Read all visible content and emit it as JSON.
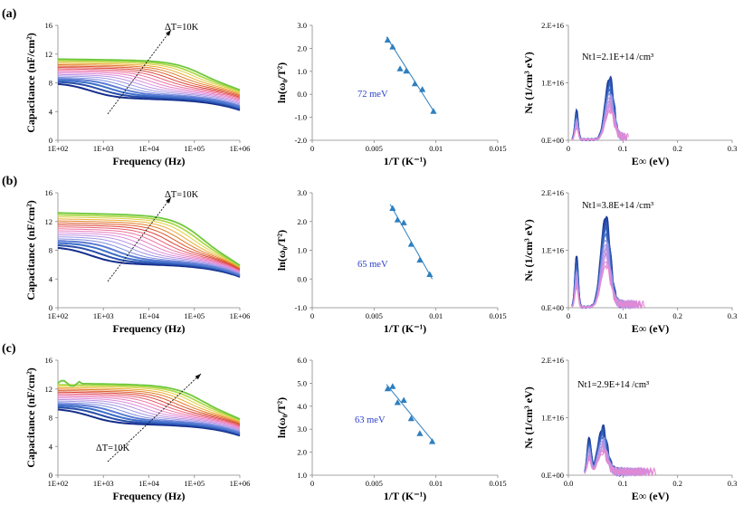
{
  "rows": [
    {
      "label": "(a)",
      "cap": {
        "annotation": "ΔT=10K",
        "ylabel": "Capacitance (nF/cm²)",
        "xlabel": "Frequency (Hz)",
        "yticks": [
          "0",
          "4",
          "8",
          "12",
          "16"
        ],
        "ylim": [
          0,
          16
        ],
        "xticks": [
          "1E+02",
          "1E+03",
          "1E+04",
          "1E+05",
          "1E+06"
        ],
        "low_start": 8.0,
        "high_start": 11.3,
        "low_end": 4.2,
        "high_end": 7.0,
        "steps": 18
      },
      "arr": {
        "ylabel": "ln(ω₀/T²)",
        "xlabel": "1/T (K⁻¹)",
        "energy": "72 meV",
        "yticks": [
          "-2.0",
          "-1.0",
          "0.0",
          "1.0",
          "2.0",
          "3.0"
        ],
        "ylim": [
          -2,
          3
        ],
        "xticks": [
          "0",
          "0.005",
          "0.01",
          "0.015"
        ],
        "xlim": [
          0,
          0.015
        ],
        "points": [
          [
            0.0061,
            2.35
          ],
          [
            0.0065,
            2.05
          ],
          [
            0.0071,
            1.1
          ],
          [
            0.0076,
            1.0
          ],
          [
            0.0083,
            0.45
          ],
          [
            0.0089,
            0.2
          ],
          [
            0.0098,
            -0.75
          ]
        ],
        "fit": [
          [
            0.006,
            2.5
          ],
          [
            0.0099,
            -0.8
          ]
        ]
      },
      "dos": {
        "ylabel": "Nₜ (1/cm³ eV)",
        "xlabel": "E∞ (eV)",
        "annotation": "Nt1=2.1E+14 /cm³",
        "yticks": [
          "0.E+00",
          "1.E+16",
          "2.E+16"
        ],
        "ylim": [
          0,
          2e+16
        ],
        "xticks": [
          "0",
          "0.1",
          "0.2",
          "0.3"
        ],
        "xlim": [
          0,
          0.3
        ],
        "peaks": [
          {
            "x": 0.015,
            "h": 5000000000000000.0,
            "w": 0.004
          },
          {
            "x": 0.075,
            "h": 1.05e+16,
            "w": 0.011
          }
        ],
        "tail_end": 0.11
      }
    },
    {
      "label": "(b)",
      "cap": {
        "annotation": "ΔT=10K",
        "ylabel": "Capacitance (nF/cm²)",
        "xlabel": "Frequency (Hz)",
        "yticks": [
          "0",
          "4",
          "8",
          "12",
          "16"
        ],
        "ylim": [
          0,
          16
        ],
        "xticks": [
          "1E+02",
          "1E+03",
          "1E+04",
          "1E+05",
          "1E+06"
        ],
        "low_start": 8.5,
        "high_start": 13.2,
        "low_end": 4.3,
        "high_end": 5.9,
        "steps": 18
      },
      "arr": {
        "ylabel": "ln(ω₀/T²)",
        "xlabel": "1/T (K⁻¹)",
        "energy": "65 meV",
        "yticks": [
          "-1.0",
          "0.0",
          "1.0",
          "2.0",
          "3.0"
        ],
        "ylim": [
          -1,
          3
        ],
        "xticks": [
          "0",
          "0.005",
          "0.01",
          "0.015"
        ],
        "xlim": [
          0,
          0.015
        ],
        "points": [
          [
            0.0065,
            2.45
          ],
          [
            0.0069,
            2.05
          ],
          [
            0.0074,
            1.95
          ],
          [
            0.008,
            1.2
          ],
          [
            0.0087,
            0.65
          ],
          [
            0.0095,
            0.15
          ]
        ],
        "fit": [
          [
            0.0063,
            2.6
          ],
          [
            0.0097,
            0.0
          ]
        ]
      },
      "dos": {
        "ylabel": "Nₜ (1/cm³ eV)",
        "xlabel": "E∞ (eV)",
        "annotation": "Nt1=3.8E+14 /cm³",
        "yticks": [
          "0.E+00",
          "1.E+16",
          "2.E+16"
        ],
        "ylim": [
          0,
          2e+16
        ],
        "xticks": [
          "0",
          "0.1",
          "0.2",
          "0.3"
        ],
        "xlim": [
          0,
          0.3
        ],
        "peaks": [
          {
            "x": 0.015,
            "h": 8800000000000000.0,
            "w": 0.004
          },
          {
            "x": 0.068,
            "h": 1.55e+16,
            "w": 0.012
          }
        ],
        "tail_end": 0.14
      }
    },
    {
      "label": "(c)",
      "cap": {
        "annotation": "ΔT=10K",
        "ylabel": "Capacitance (nF/cm²)",
        "xlabel": "Frequency (Hz)",
        "yticks": [
          "0",
          "4",
          "8",
          "12",
          "16"
        ],
        "ylim": [
          0,
          16
        ],
        "xticks": [
          "1E+02",
          "1E+03",
          "1E+04",
          "1E+05",
          "1E+06"
        ],
        "low_start": 9.3,
        "high_start": 12.8,
        "low_end": 5.5,
        "high_end": 7.8,
        "steps": 18
      },
      "arr": {
        "ylabel": "ln(ω₀/T²)",
        "xlabel": "1/T (K⁻¹)",
        "energy": "63 meV",
        "yticks": [
          "1.0",
          "2.0",
          "3.0",
          "4.0",
          "5.0",
          "6.0"
        ],
        "ylim": [
          1,
          6
        ],
        "xticks": [
          "0",
          "0.005",
          "0.01",
          "0.015"
        ],
        "xlim": [
          0,
          0.015
        ],
        "points": [
          [
            0.0061,
            4.75
          ],
          [
            0.0065,
            4.85
          ],
          [
            0.0069,
            4.15
          ],
          [
            0.0074,
            4.25
          ],
          [
            0.008,
            3.45
          ],
          [
            0.0087,
            2.8
          ],
          [
            0.0097,
            2.45
          ]
        ],
        "fit": [
          [
            0.006,
            4.95
          ],
          [
            0.0098,
            2.45
          ]
        ]
      },
      "dos": {
        "ylabel": "Nₜ (1/cm³ eV)",
        "xlabel": "E∞ (eV)",
        "annotation": "Nt1=2.9E+14 /cm³",
        "yticks": [
          "0.E+00",
          "1.E+16",
          "2.E+16"
        ],
        "ylim": [
          0,
          2e+16
        ],
        "xticks": [
          "0.0",
          "0.1",
          "0.2",
          "0.3"
        ],
        "xlim": [
          0,
          0.3
        ],
        "peaks": [
          {
            "x": 0.038,
            "h": 6200000000000000.0,
            "w": 0.005
          },
          {
            "x": 0.062,
            "h": 7800000000000000.0,
            "w": 0.012
          }
        ],
        "tail_end": 0.16
      }
    }
  ],
  "chart_data": [
    {
      "type": "line",
      "panel": "(a) capacitance",
      "title": "",
      "xlabel": "Frequency (Hz)",
      "ylabel": "Capacitance (nF/cm²)",
      "x_range": [
        "1E+02",
        "1E+06"
      ],
      "ylim": [
        0,
        16
      ],
      "series_description": "18 temperature curves, ΔT=10K",
      "low_T_start": 8.0,
      "high_T_start": 11.3,
      "low_T_end": 4.2,
      "high_T_end": 7.0
    },
    {
      "type": "scatter",
      "panel": "(a) Arrhenius",
      "xlabel": "1/T (K⁻¹)",
      "ylabel": "ln(ω₀/T²)",
      "activation_energy": "72 meV",
      "x": [
        0.0061,
        0.0065,
        0.0071,
        0.0076,
        0.0083,
        0.0089,
        0.0098
      ],
      "y": [
        2.35,
        2.05,
        1.1,
        1.0,
        0.45,
        0.2,
        -0.75
      ],
      "ylim": [
        -2,
        3
      ],
      "xlim": [
        0,
        0.015
      ]
    },
    {
      "type": "line",
      "panel": "(a) defect density",
      "xlabel": "E∞ (eV)",
      "ylabel": "Nₜ (1/cm³ eV)",
      "annotation": "Nt1=2.1E+14 /cm³",
      "peaks_eV": [
        0.015,
        0.075
      ],
      "peak_heights": [
        5000000000000000.0,
        1.05e+16
      ],
      "ylim": [
        0,
        2e+16
      ],
      "xlim": [
        0,
        0.3
      ]
    },
    {
      "type": "line",
      "panel": "(b) capacitance",
      "xlabel": "Frequency (Hz)",
      "ylabel": "Capacitance (nF/cm²)",
      "x_range": [
        "1E+02",
        "1E+06"
      ],
      "ylim": [
        0,
        16
      ],
      "low_T_start": 8.5,
      "high_T_start": 13.2,
      "low_T_end": 4.3,
      "high_T_end": 5.9
    },
    {
      "type": "scatter",
      "panel": "(b) Arrhenius",
      "xlabel": "1/T (K⁻¹)",
      "ylabel": "ln(ω₀/T²)",
      "activation_energy": "65 meV",
      "x": [
        0.0065,
        0.0069,
        0.0074,
        0.008,
        0.0087,
        0.0095
      ],
      "y": [
        2.45,
        2.05,
        1.95,
        1.2,
        0.65,
        0.15
      ],
      "ylim": [
        -1,
        3
      ],
      "xlim": [
        0,
        0.015
      ]
    },
    {
      "type": "line",
      "panel": "(b) defect density",
      "xlabel": "E∞ (eV)",
      "ylabel": "Nₜ (1/cm³ eV)",
      "annotation": "Nt1=3.8E+14 /cm³",
      "peaks_eV": [
        0.015,
        0.068
      ],
      "peak_heights": [
        8800000000000000.0,
        1.55e+16
      ],
      "ylim": [
        0,
        2e+16
      ],
      "xlim": [
        0,
        0.3
      ]
    },
    {
      "type": "line",
      "panel": "(c) capacitance",
      "xlabel": "Frequency (Hz)",
      "ylabel": "Capacitance (nF/cm²)",
      "x_range": [
        "1E+02",
        "1E+06"
      ],
      "ylim": [
        0,
        16
      ],
      "low_T_start": 9.3,
      "high_T_start": 12.8,
      "low_T_end": 5.5,
      "high_T_end": 7.8
    },
    {
      "type": "scatter",
      "panel": "(c) Arrhenius",
      "xlabel": "1/T (K⁻¹)",
      "ylabel": "ln(ω₀/T²)",
      "activation_energy": "63 meV",
      "x": [
        0.0061,
        0.0065,
        0.0069,
        0.0074,
        0.008,
        0.0087,
        0.0097
      ],
      "y": [
        4.75,
        4.85,
        4.15,
        4.25,
        3.45,
        2.8,
        2.45
      ],
      "ylim": [
        1,
        6
      ],
      "xlim": [
        0,
        0.015
      ]
    },
    {
      "type": "line",
      "panel": "(c) defect density",
      "xlabel": "E∞ (eV)",
      "ylabel": "Nₜ (1/cm³ eV)",
      "annotation": "Nt1=2.9E+14 /cm³",
      "peaks_eV": [
        0.038,
        0.062
      ],
      "peak_heights": [
        6200000000000000.0,
        7800000000000000.0
      ],
      "ylim": [
        0,
        2e+16
      ],
      "xlim": [
        0,
        0.3
      ]
    }
  ]
}
